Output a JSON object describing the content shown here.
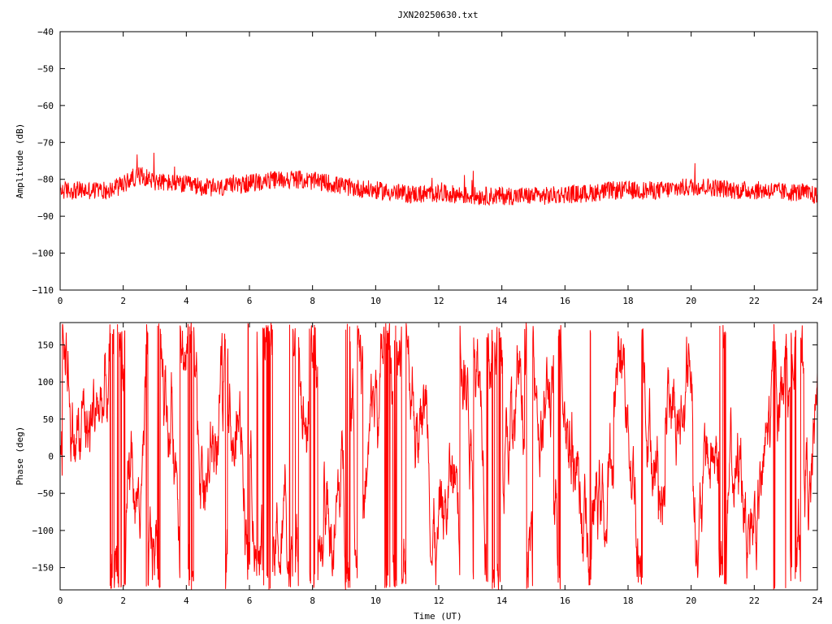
{
  "chart_data": [
    {
      "type": "line",
      "title": "JXN20250630.txt",
      "xlabel": "",
      "ylabel": "Amplitude (dB)",
      "xlim": [
        0,
        24
      ],
      "ylim": [
        -110,
        -40
      ],
      "x_ticks": [
        "0",
        "2",
        "4",
        "6",
        "8",
        "10",
        "12",
        "14",
        "16",
        "18",
        "20",
        "22",
        "24"
      ],
      "y_ticks": [
        "-40",
        "-50",
        "-60",
        "-70",
        "-80",
        "-90",
        "-100",
        "-110"
      ],
      "color": "#ff0000",
      "series": [
        {
          "x": [
            0,
            0.5,
            1,
            1.5,
            2,
            2.3,
            2.6,
            3,
            3.5,
            4,
            4.5,
            5,
            5.5,
            6,
            6.5,
            7,
            7.5,
            8,
            8.5,
            9,
            9.5,
            10,
            10.5,
            11,
            11.5,
            12,
            12.5,
            13,
            13.5,
            14,
            14.5,
            15,
            15.5,
            16,
            16.5,
            17,
            17.5,
            18,
            18.5,
            19,
            19.5,
            20,
            20.5,
            21,
            21.5,
            22,
            22.5,
            23,
            23.5,
            24
          ],
          "y": [
            -83,
            -83,
            -83,
            -83,
            -81.5,
            -79.5,
            -79,
            -80.5,
            -81,
            -81.5,
            -82,
            -82.5,
            -82,
            -81,
            -80.5,
            -80,
            -80,
            -80.5,
            -81,
            -82,
            -82.5,
            -83,
            -83.5,
            -84,
            -84,
            -84,
            -84,
            -84.5,
            -84.5,
            -84.5,
            -84.5,
            -84.5,
            -84.5,
            -84,
            -84,
            -83.5,
            -83,
            -83,
            -83,
            -83,
            -82.5,
            -82,
            -82,
            -82.5,
            -83,
            -83,
            -83,
            -83.5,
            -83.5,
            -84.5
          ],
          "noise": 2.5
        }
      ]
    },
    {
      "type": "line",
      "title": "",
      "xlabel": "Time (UT)",
      "ylabel": "Phase (deg)",
      "xlim": [
        0,
        24
      ],
      "ylim": [
        -180,
        180
      ],
      "x_ticks": [
        "0",
        "2",
        "4",
        "6",
        "8",
        "10",
        "12",
        "14",
        "16",
        "18",
        "20",
        "22",
        "24"
      ],
      "y_ticks": [
        "150",
        "100",
        "50",
        "0",
        "-50",
        "-100",
        "-150"
      ],
      "color": "#ff0000",
      "series": [
        {
          "range": [
            -180,
            180
          ],
          "wrapping": true
        }
      ]
    }
  ]
}
